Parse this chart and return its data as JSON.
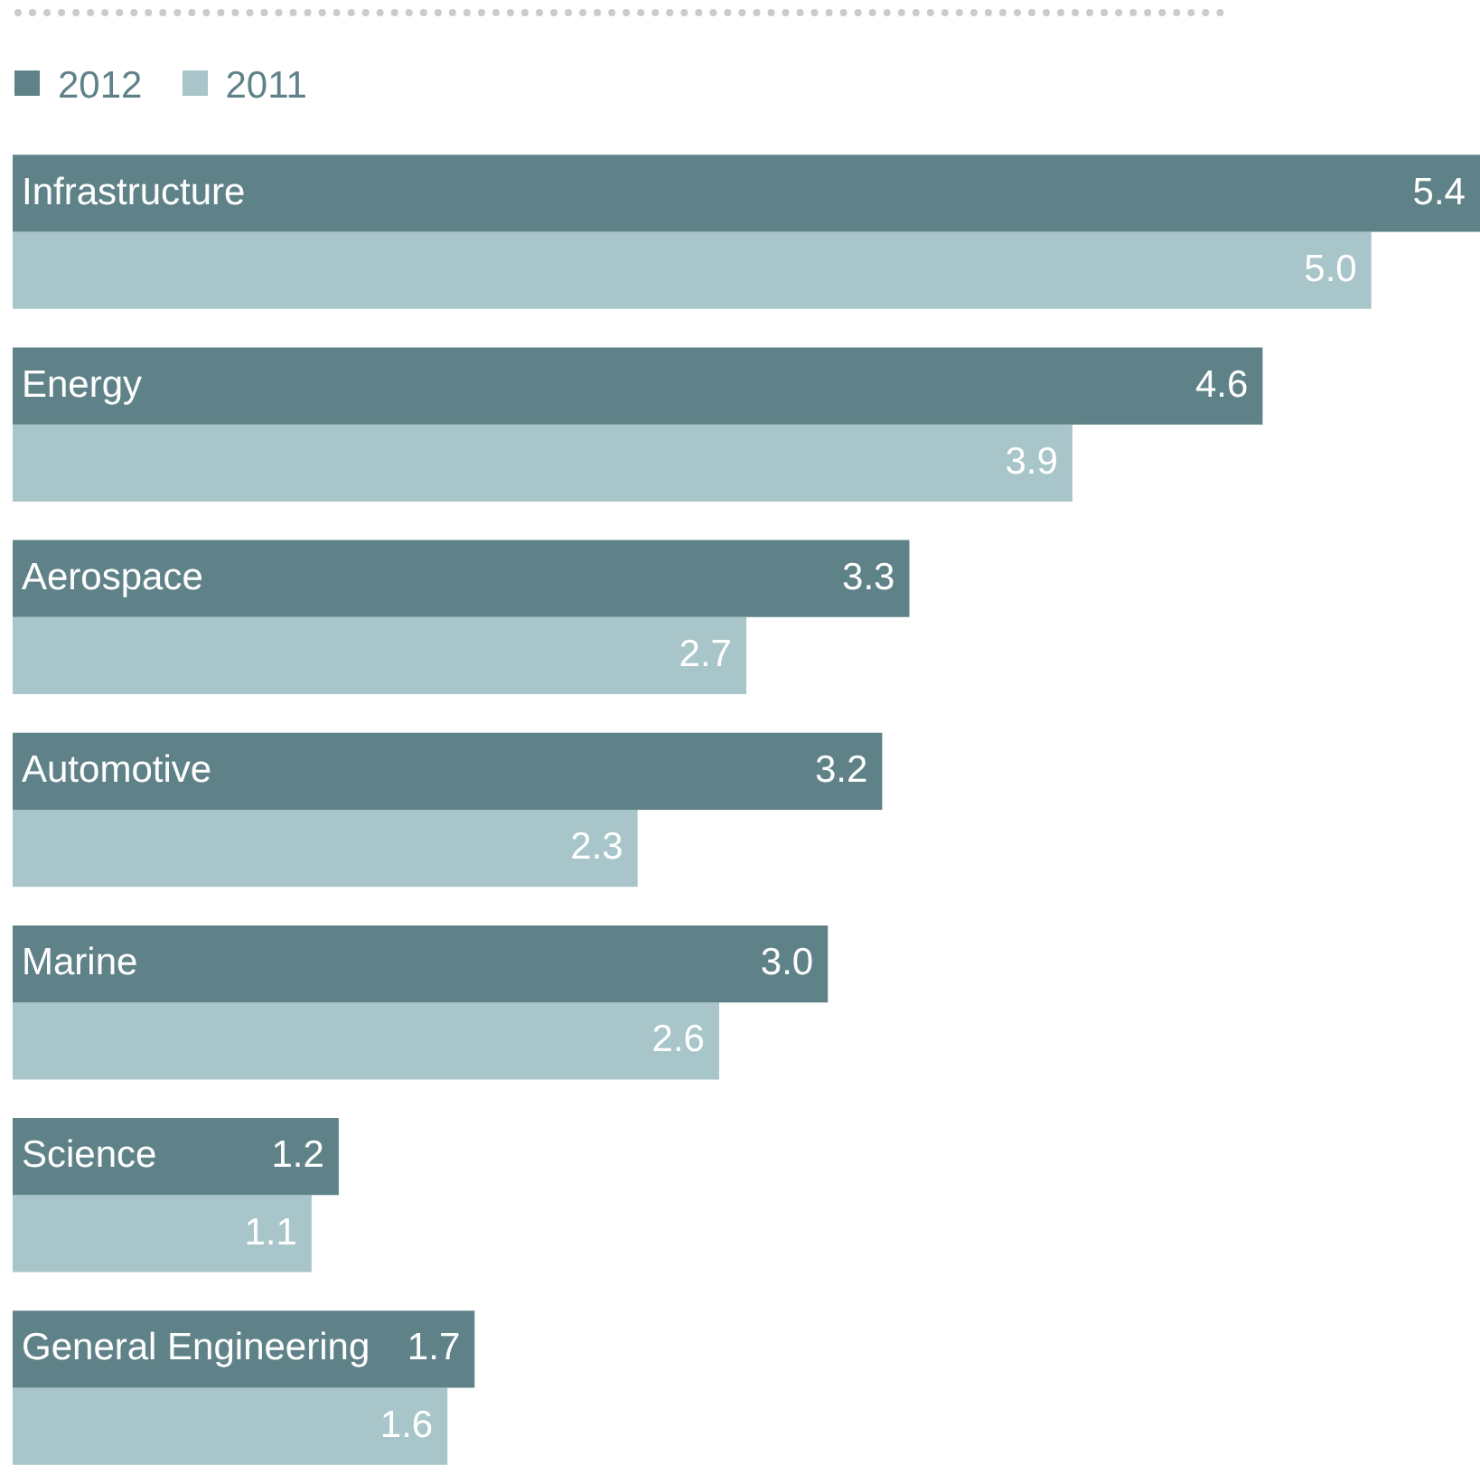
{
  "chart_data": {
    "type": "bar",
    "orientation": "horizontal",
    "categories": [
      "Infrastructure",
      "Energy",
      "Aerospace",
      "Automotive",
      "Marine",
      "Science",
      "General Engineering"
    ],
    "series": [
      {
        "name": "2012",
        "color": "#5f8288",
        "values": [
          5.4,
          4.6,
          3.3,
          3.2,
          3.0,
          1.2,
          1.7
        ],
        "value_labels": [
          "5.4",
          "4.6",
          "3.3",
          "3.2",
          "3.0",
          "1.2",
          "1.7"
        ]
      },
      {
        "name": "2011",
        "color": "#a8c5c9",
        "values": [
          5.0,
          3.9,
          2.7,
          2.3,
          2.6,
          1.1,
          1.6
        ],
        "value_labels": [
          "5.0",
          "3.9",
          "2.7",
          "2.3",
          "2.6",
          "1.1",
          "1.6"
        ]
      }
    ],
    "legend": "top left"
  }
}
